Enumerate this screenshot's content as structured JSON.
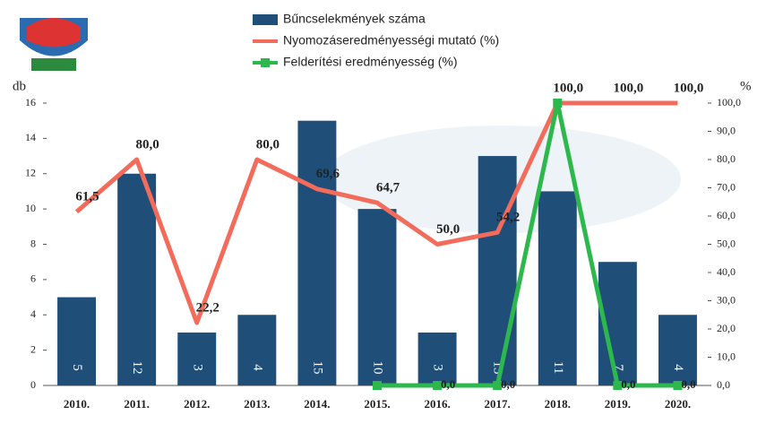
{
  "chart_data": {
    "type": "bar-line",
    "y_label": "db",
    "y2_label": "%",
    "categories": [
      "2010.",
      "2011.",
      "2012.",
      "2013.",
      "2014.",
      "2015.",
      "2016.",
      "2017.",
      "2018.",
      "2019.",
      "2020."
    ],
    "series": [
      {
        "name": "Bűncselekmények száma",
        "type": "bar",
        "color": "#1f4e79",
        "values": [
          5,
          12,
          3,
          4,
          15,
          10,
          3,
          13,
          11,
          7,
          4
        ]
      },
      {
        "name": "Nyomozáseredményességi mutató (%)",
        "type": "line",
        "axis": "y2",
        "color": "#f26b5b",
        "values": [
          61.5,
          80.0,
          22.2,
          80.0,
          69.6,
          64.7,
          50.0,
          54.2,
          100.0,
          100.0,
          100.0
        ],
        "value_labels": [
          "61,5",
          "80,0",
          "22,2",
          "80,0",
          "69,6",
          "64,7",
          "50,0",
          "54,2",
          "100,0",
          "100,0",
          "100,0"
        ]
      },
      {
        "name": "Felderítési eredményesség (%)",
        "type": "line",
        "axis": "y2",
        "color": "#2db84d",
        "values": [
          null,
          null,
          null,
          null,
          null,
          0,
          0,
          0,
          100,
          0,
          0
        ],
        "value_labels": [
          null,
          null,
          null,
          null,
          null,
          null,
          "0,0",
          "0,0",
          null,
          "0,0",
          "0,0"
        ]
      }
    ],
    "ylim": [
      0,
      16
    ],
    "yticks": [
      0,
      2,
      4,
      6,
      8,
      10,
      12,
      14,
      16
    ],
    "y2lim": [
      0,
      100
    ],
    "y2ticks": [
      {
        "value": 0,
        "label": "0,0"
      },
      {
        "value": 10,
        "label": "10,0"
      },
      {
        "value": 20,
        "label": "20,0"
      },
      {
        "value": 30,
        "label": "30,0"
      },
      {
        "value": 40,
        "label": "40,0"
      },
      {
        "value": 50,
        "label": "50,0"
      },
      {
        "value": 60,
        "label": "60,0"
      },
      {
        "value": 70,
        "label": "70,0"
      },
      {
        "value": 80,
        "label": "80,0"
      },
      {
        "value": 90,
        "label": "90,0"
      },
      {
        "value": 100,
        "label": "100,0"
      }
    ],
    "legend": "top"
  }
}
